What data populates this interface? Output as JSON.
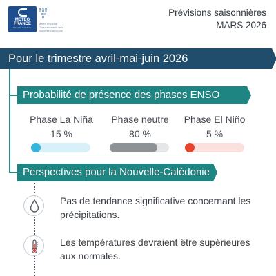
{
  "header": {
    "logo": {
      "line1": "METEO",
      "line2": "FRANCE",
      "line3": "Nouvelle-Calédonie"
    },
    "partner": {
      "text": "Météo et climat Gouvernement de la Nouvelle-Calédonie"
    },
    "title": "Prévisions saisonnières",
    "date": "MARS 2026"
  },
  "banner": {
    "title": "Pour le trimestre avril-mai-juin 2026"
  },
  "enso": {
    "heading": "Probabilité de présence des phases ENSO",
    "phases": [
      {
        "name": "Phase La Niña",
        "value_label": "15 %",
        "value": 15,
        "fill_color": "#35b4dc",
        "track_color": "#d8f1f9"
      },
      {
        "name": "Phase neutre",
        "value_label": "80 %",
        "value": 80,
        "fill_color": "#8d9296",
        "track_color": "#e5e6e7"
      },
      {
        "name": "Phase El Niño",
        "value_label": "5 %",
        "value": 5,
        "fill_color": "#e8452e",
        "track_color": "#fbe1de"
      }
    ]
  },
  "outlook": {
    "heading": "Perspectives pour la Nouvelle-Calédonie",
    "items": [
      {
        "icon": "water-drop-icon",
        "text": "Pas de tendance significative concernant les précipitations."
      },
      {
        "icon": "thermometer-icon",
        "text": "Les températures devraient être supérieures aux normales."
      }
    ]
  },
  "colors": {
    "navy": "#1f4d6b",
    "teal": "#1f8583",
    "logo_blue": "#1f4e8f"
  }
}
